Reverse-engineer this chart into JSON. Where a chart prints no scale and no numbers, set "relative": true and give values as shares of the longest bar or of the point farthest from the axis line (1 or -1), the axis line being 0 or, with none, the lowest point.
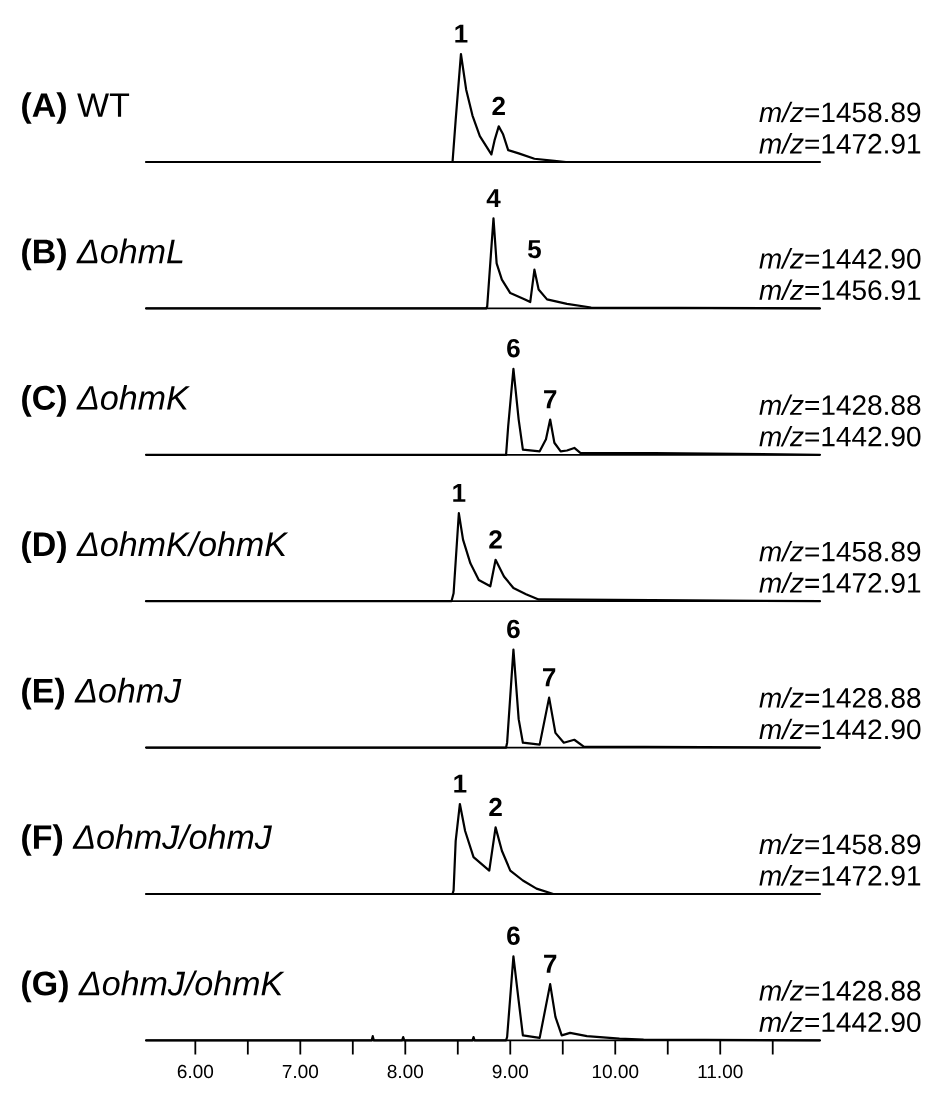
{
  "chart_data": [
    {
      "type": "line",
      "title": "**(A)** WT",
      "relative": true,
      "tick_labels": false,
      "xlim": [
        5.53,
        11.95
      ],
      "color": "#000000",
      "x": [
        5.53,
        8.45,
        8.48,
        8.53,
        8.58,
        8.64,
        8.71,
        8.82,
        8.85,
        8.89,
        8.93,
        8.98,
        9.08,
        9.23,
        9.42,
        9.53,
        11.95
      ],
      "values": [
        0,
        0,
        0.39,
        1,
        0.67,
        0.43,
        0.24,
        0.07,
        0.2,
        0.33,
        0.26,
        0.11,
        0.08,
        0.03,
        0.01,
        0,
        0
      ],
      "annotations": [
        {
          "text": "1",
          "x": 8.53,
          "y": 1
        },
        {
          "text": "2",
          "x": 8.89,
          "y": 0.33
        },
        "*m/z*=1458.89",
        "*m/z*=1472.91"
      ]
    },
    {
      "type": "line",
      "title": "**(B)** *ΔohmL*",
      "relative": true,
      "tick_labels": false,
      "xlim": [
        5.53,
        11.95
      ],
      "color": "#000000",
      "x": [
        5.53,
        8.77,
        8.78,
        8.84,
        8.87,
        8.92,
        9.0,
        9.14,
        9.19,
        9.23,
        9.27,
        9.35,
        9.54,
        9.77,
        11.95
      ],
      "values": [
        0,
        0,
        0.02,
        1,
        0.5,
        0.32,
        0.17,
        0.1,
        0.07,
        0.43,
        0.21,
        0.1,
        0.05,
        0.01,
        0
      ],
      "annotations": [
        {
          "text": "4",
          "x": 8.84,
          "y": 1
        },
        {
          "text": "5",
          "x": 9.23,
          "y": 0.43
        },
        "*m/z*=1442.90",
        "*m/z*=1456.91"
      ]
    },
    {
      "type": "line",
      "title": "**(C)** *ΔohmK*",
      "relative": true,
      "tick_labels": false,
      "xlim": [
        5.53,
        11.95
      ],
      "color": "#000000",
      "x": [
        5.53,
        8.96,
        8.98,
        9.03,
        9.08,
        9.12,
        9.28,
        9.34,
        9.38,
        9.42,
        9.48,
        9.54,
        9.61,
        9.67,
        10.37,
        11.95
      ],
      "values": [
        0,
        0,
        0.33,
        1,
        0.41,
        0.06,
        0.04,
        0.18,
        0.41,
        0.14,
        0.04,
        0.05,
        0.08,
        0.02,
        0.02,
        0
      ],
      "annotations": [
        {
          "text": "6",
          "x": 9.03,
          "y": 1
        },
        {
          "text": "7",
          "x": 9.38,
          "y": 0.41
        },
        "*m/z*=1428.88",
        "*m/z*=1442.90"
      ]
    },
    {
      "type": "line",
      "title": "**(D)** *ΔohmK/ohmK*",
      "relative": true,
      "tick_labels": false,
      "xlim": [
        5.53,
        11.95
      ],
      "color": "#000000",
      "x": [
        5.53,
        8.44,
        8.46,
        8.51,
        8.55,
        8.62,
        8.7,
        8.81,
        8.86,
        8.94,
        9.03,
        9.15,
        9.27,
        11.95
      ],
      "values": [
        0,
        0,
        0.09,
        1,
        0.7,
        0.43,
        0.24,
        0.17,
        0.47,
        0.28,
        0.15,
        0.08,
        0.02,
        0
      ],
      "annotations": [
        {
          "text": "1",
          "x": 8.51,
          "y": 1
        },
        {
          "text": "2",
          "x": 8.86,
          "y": 0.47
        },
        "*m/z*=1458.89",
        "*m/z*=1472.91"
      ]
    },
    {
      "type": "line",
      "title": "**(E)** *ΔohmJ*",
      "relative": true,
      "tick_labels": false,
      "xlim": [
        5.53,
        11.95
      ],
      "color": "#000000",
      "x": [
        5.53,
        8.96,
        8.97,
        9.03,
        9.08,
        9.12,
        9.28,
        9.37,
        9.43,
        9.51,
        9.61,
        9.7,
        11.95
      ],
      "values": [
        0,
        0,
        0.05,
        1,
        0.29,
        0.05,
        0.03,
        0.51,
        0.15,
        0.05,
        0.08,
        0.01,
        0
      ],
      "annotations": [
        {
          "text": "6",
          "x": 9.03,
          "y": 1
        },
        {
          "text": "7",
          "x": 9.37,
          "y": 0.51
        },
        "*m/z*=1428.88",
        "*m/z*=1442.90"
      ]
    },
    {
      "type": "line",
      "title": "**(F)** *ΔohmJ/ohmJ*",
      "relative": true,
      "tick_labels": false,
      "xlim": [
        5.53,
        11.95
      ],
      "color": "#000000",
      "x": [
        5.53,
        8.45,
        8.46,
        8.48,
        8.52,
        8.57,
        8.65,
        8.8,
        8.86,
        8.92,
        9.0,
        9.12,
        9.25,
        9.41,
        11.95
      ],
      "values": [
        0,
        0,
        0.04,
        0.59,
        1,
        0.7,
        0.41,
        0.26,
        0.74,
        0.48,
        0.26,
        0.15,
        0.06,
        0,
        0
      ],
      "annotations": [
        {
          "text": "1",
          "x": 8.52,
          "y": 1
        },
        {
          "text": "2",
          "x": 8.86,
          "y": 0.74
        },
        "*m/z*=1458.89",
        "*m/z*=1472.91"
      ]
    },
    {
      "type": "line",
      "title": "**(G)** *ΔohmJ/ohmK*",
      "relative": true,
      "tick_labels": "x",
      "xlim": [
        5.53,
        11.95
      ],
      "color": "#000000",
      "xticks": [
        {
          "value": 6,
          "label": "6.00"
        },
        {
          "value": 6.5,
          "label": null
        },
        {
          "value": 7,
          "label": "7.00"
        },
        {
          "value": 7.5,
          "label": null
        },
        {
          "value": 8,
          "label": "8.00"
        },
        {
          "value": 8.5,
          "label": null
        },
        {
          "value": 9,
          "label": "9.00"
        },
        {
          "value": 9.5,
          "label": null
        },
        {
          "value": 10,
          "label": "10.00"
        },
        {
          "value": 10.5,
          "label": null
        },
        {
          "value": 11,
          "label": "11.00"
        },
        {
          "value": 11.5,
          "label": null
        }
      ],
      "x": [
        5.53,
        7.68,
        7.69,
        7.7,
        7.97,
        7.98,
        7.99,
        8.64,
        8.65,
        8.66,
        8.96,
        8.97,
        9.03,
        9.08,
        9.12,
        9.28,
        9.38,
        9.43,
        9.49,
        9.57,
        9.73,
        10.04,
        10.27,
        11.95
      ],
      "values": [
        0,
        0,
        0.05,
        0,
        0,
        0.04,
        0,
        0,
        0.04,
        0,
        0,
        0.04,
        1,
        0.47,
        0.06,
        0.03,
        0.67,
        0.28,
        0.06,
        0.09,
        0.05,
        0.02,
        0.01,
        0
      ],
      "annotations": [
        {
          "text": "6",
          "x": 9.03,
          "y": 1
        },
        {
          "text": "7",
          "x": 9.38,
          "y": 0.67
        },
        "*m/z*=1428.88",
        "*m/z*=1442.90"
      ]
    }
  ]
}
